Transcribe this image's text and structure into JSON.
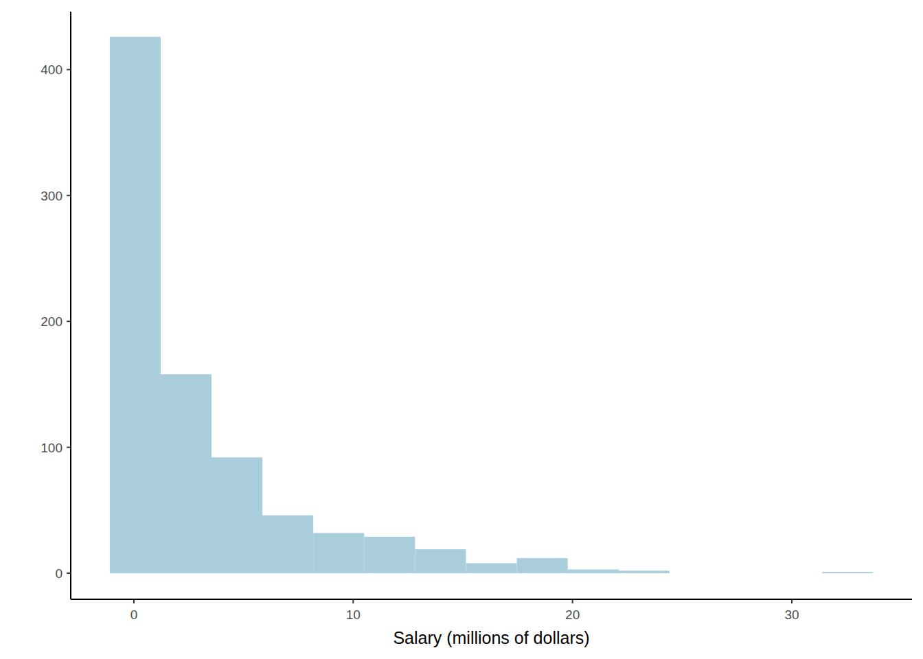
{
  "chart_data": {
    "type": "histogram",
    "x_label": "Salary (millions of dollars)",
    "bins": [
      -1.1,
      1.22,
      3.54,
      5.86,
      8.18,
      10.5,
      12.82,
      15.14,
      17.46,
      19.78,
      22.1,
      24.42,
      26.74,
      29.06,
      31.38,
      33.7
    ],
    "values": [
      426,
      158,
      92,
      46,
      32,
      29,
      19,
      8,
      12,
      3,
      2,
      0,
      0,
      0,
      1
    ],
    "color": "#aacddc",
    "xlim": [
      -2.88,
      35.48
    ],
    "xticks": [
      0,
      10,
      20,
      30
    ],
    "ylim": [
      -20.7,
      446
    ],
    "yticks": [
      0,
      100,
      200,
      300,
      400
    ],
    "grid": false
  }
}
